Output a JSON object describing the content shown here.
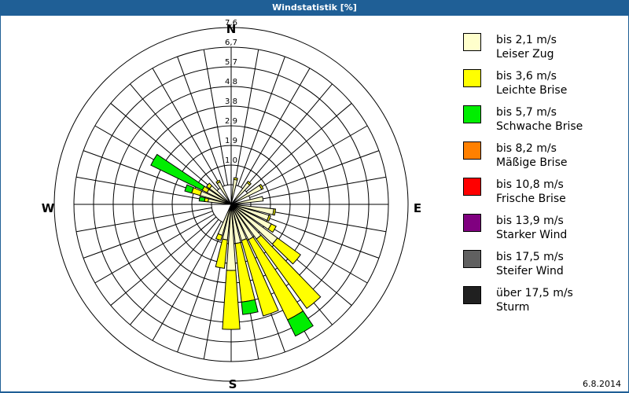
{
  "window": {
    "title": "Windstatistik [%]",
    "date": "6.8.2014"
  },
  "colors": {
    "titlebar": "#1f5f96",
    "grid": "#000000"
  },
  "compass": {
    "N": "N",
    "E": "E",
    "S": "S",
    "W": "W"
  },
  "legend": [
    {
      "range": "bis 2,1 m/s",
      "label": "Leiser Zug",
      "color": "#ffffcc"
    },
    {
      "range": "bis 3,6 m/s",
      "label": "Leichte Brise",
      "color": "#ffff00"
    },
    {
      "range": "bis 5,7 m/s",
      "label": "Schwache Brise",
      "color": "#00ee00"
    },
    {
      "range": "bis 8,2 m/s",
      "label": "Mäßige Brise",
      "color": "#ff8000"
    },
    {
      "range": "bis 10,8 m/s",
      "label": "Frische Brise",
      "color": "#ff0000"
    },
    {
      "range": "bis 13,9 m/s",
      "label": "Starker Wind",
      "color": "#800080"
    },
    {
      "range": "bis 17,5 m/s",
      "label": "Steifer Wind",
      "color": "#606060"
    },
    {
      "range": "über 17,5 m/s",
      "label": "Sturm",
      "color": "#202020"
    }
  ],
  "chart_data": {
    "type": "wind-rose",
    "title": "Windstatistik [%]",
    "unit": "%",
    "radial_ticks": [
      "1,0",
      "1,9",
      "2,9",
      "3,8",
      "4,8",
      "5,7",
      "6,7",
      "7,6"
    ],
    "radial_tick_values": [
      1.0,
      1.9,
      2.9,
      3.8,
      4.8,
      5.7,
      6.7,
      7.6
    ],
    "rmax": 7.6,
    "direction_labels": [
      "N",
      "E",
      "S",
      "W"
    ],
    "sector_width_deg": 8,
    "series_names": [
      "Leiser Zug",
      "Leichte Brise",
      "Schwache Brise",
      "Mäßige Brise",
      "Frische Brise",
      "Starker Wind",
      "Steifer Wind",
      "Sturm"
    ],
    "sectors": [
      {
        "dir": 10,
        "values": [
          0.2,
          0.1,
          0,
          0,
          0,
          0,
          0,
          0
        ]
      },
      {
        "dir": 40,
        "values": [
          0.3,
          0.1,
          0,
          0,
          0,
          0,
          0,
          0
        ]
      },
      {
        "dir": 60,
        "values": [
          0.7,
          0.1,
          0,
          0,
          0,
          0,
          0,
          0
        ]
      },
      {
        "dir": 80,
        "values": [
          0.6,
          0,
          0,
          0,
          0,
          0,
          0,
          0
        ]
      },
      {
        "dir": 100,
        "values": [
          1.2,
          0.1,
          0,
          0,
          0,
          0,
          0,
          0
        ]
      },
      {
        "dir": 110,
        "values": [
          1.0,
          0.1,
          0,
          0,
          0,
          0,
          0,
          0
        ]
      },
      {
        "dir": 120,
        "values": [
          1.3,
          0.3,
          0,
          0,
          0,
          0,
          0,
          0
        ]
      },
      {
        "dir": 130,
        "values": [
          2.0,
          1.6,
          0,
          0,
          0,
          0,
          0,
          0
        ]
      },
      {
        "dir": 140,
        "values": [
          1.2,
          4.8,
          0,
          0,
          0,
          0,
          0,
          0
        ]
      },
      {
        "dir": 150,
        "values": [
          1.0,
          5.0,
          1.0,
          0,
          0,
          0,
          0,
          0
        ]
      },
      {
        "dir": 160,
        "values": [
          0.9,
          4.4,
          0,
          0,
          0,
          0,
          0,
          0
        ]
      },
      {
        "dir": 170,
        "values": [
          1.0,
          3.3,
          0.7,
          0,
          0,
          0,
          0,
          0
        ]
      },
      {
        "dir": 180,
        "values": [
          2.5,
          3.3,
          0,
          0,
          0,
          0,
          0,
          0
        ]
      },
      {
        "dir": 190,
        "values": [
          0.8,
          1.6,
          0,
          0,
          0,
          0,
          0,
          0
        ]
      },
      {
        "dir": 200,
        "values": [
          0.6,
          0.3,
          0,
          0,
          0,
          0,
          0,
          0
        ]
      },
      {
        "dir": 280,
        "values": [
          0.1,
          0.2,
          0.3,
          0,
          0,
          0,
          0,
          0
        ]
      },
      {
        "dir": 290,
        "values": [
          0.6,
          0.5,
          0.4,
          0,
          0,
          0,
          0,
          0
        ]
      },
      {
        "dir": 300,
        "values": [
          0.3,
          0.3,
          3.2,
          0,
          0,
          0,
          0,
          0
        ]
      },
      {
        "dir": 310,
        "values": [
          0.3,
          0.2,
          0,
          0,
          0,
          0,
          0,
          0
        ]
      },
      {
        "dir": 330,
        "values": [
          0.2,
          0.1,
          0,
          0,
          0,
          0,
          0,
          0
        ]
      }
    ]
  }
}
